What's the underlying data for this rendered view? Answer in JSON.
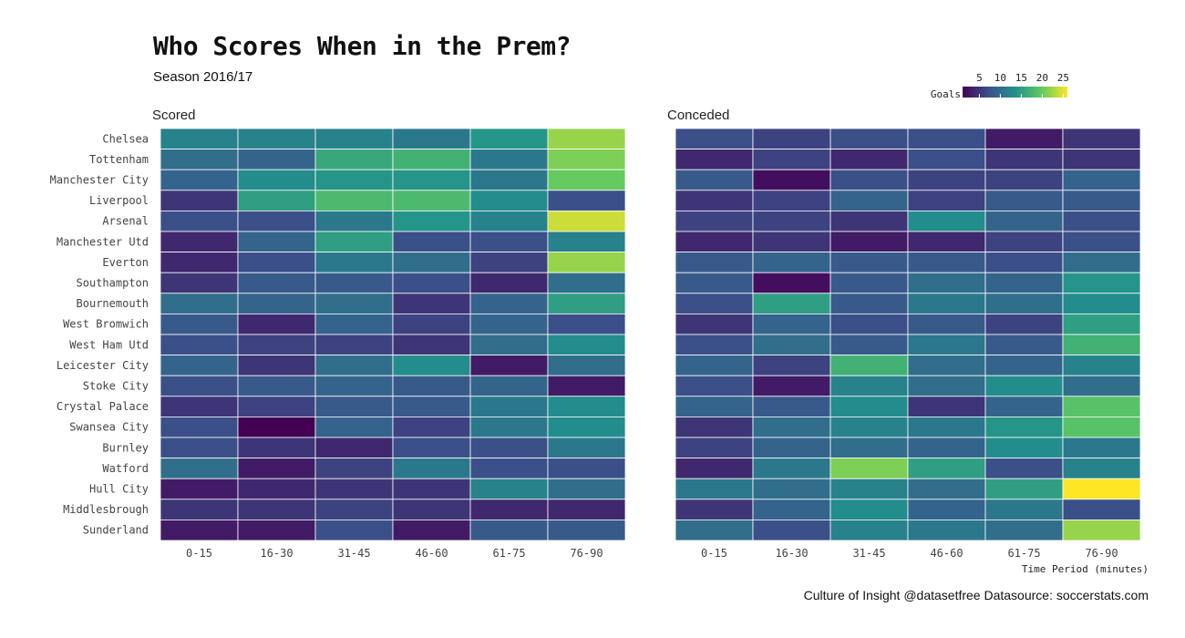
{
  "title": "Who Scores When in the Prem?",
  "subtitle": "Season 2016/17",
  "caption": "Culture of Insight @datasetfree Datasource: soccerstats.com",
  "chart_data": {
    "type": "heatmap",
    "xlabel": "Time Period (minutes)",
    "color_scale": "viridis",
    "colors": [
      "#440154",
      "#3b528b",
      "#21918c",
      "#5ec962",
      "#fde725"
    ],
    "legend": {
      "title": "Goals",
      "ticks": [
        5,
        10,
        15,
        20,
        25
      ],
      "range": [
        1,
        26
      ],
      "placement": "top-right"
    },
    "x_categories": [
      "0-15",
      "16-30",
      "31-45",
      "46-60",
      "61-75",
      "76-90"
    ],
    "y_categories": [
      "Chelsea",
      "Tottenham",
      "Manchester City",
      "Liverpool",
      "Arsenal",
      "Manchester Utd",
      "Everton",
      "Southampton",
      "Bournemouth",
      "West Bromwich",
      "West Ham Utd",
      "Leicester City",
      "Stoke City",
      "Crystal Palace",
      "Swansea City",
      "Burnley",
      "Watford",
      "Hull City",
      "Middlesbrough",
      "Sunderland"
    ],
    "panels": [
      {
        "title": "Scored",
        "values": [
          [
            12,
            12,
            12,
            11,
            14,
            22
          ],
          [
            10,
            9,
            16,
            17,
            11,
            21
          ],
          [
            9,
            13,
            14,
            14,
            11,
            20
          ],
          [
            5,
            15,
            18,
            18,
            13,
            7
          ],
          [
            7,
            7,
            11,
            14,
            12,
            24
          ],
          [
            4,
            9,
            15,
            7,
            7,
            12
          ],
          [
            4,
            7,
            11,
            10,
            6,
            22
          ],
          [
            5,
            8,
            8,
            7,
            4,
            10
          ],
          [
            10,
            9,
            10,
            5,
            9,
            15
          ],
          [
            8,
            4,
            9,
            6,
            9,
            7
          ],
          [
            7,
            6,
            6,
            5,
            10,
            13
          ],
          [
            9,
            5,
            10,
            13,
            3,
            10
          ],
          [
            7,
            8,
            9,
            8,
            9,
            3
          ],
          [
            5,
            6,
            8,
            8,
            11,
            13
          ],
          [
            7,
            1,
            9,
            6,
            11,
            13
          ],
          [
            7,
            5,
            4,
            7,
            7,
            11
          ],
          [
            10,
            3,
            6,
            11,
            7,
            7
          ],
          [
            3,
            4,
            5,
            5,
            12,
            10
          ],
          [
            5,
            5,
            6,
            5,
            4,
            4
          ],
          [
            3,
            3,
            7,
            3,
            8,
            8
          ]
        ]
      },
      {
        "title": "Conceded",
        "values": [
          [
            7,
            6,
            7,
            7,
            3,
            5
          ],
          [
            4,
            6,
            4,
            7,
            5,
            5
          ],
          [
            8,
            2,
            7,
            6,
            6,
            9
          ],
          [
            5,
            6,
            9,
            6,
            8,
            8
          ],
          [
            6,
            6,
            5,
            13,
            9,
            7
          ],
          [
            4,
            5,
            3,
            4,
            6,
            7
          ],
          [
            8,
            9,
            8,
            8,
            7,
            10
          ],
          [
            8,
            2,
            8,
            10,
            9,
            14
          ],
          [
            7,
            15,
            8,
            11,
            10,
            13
          ],
          [
            5,
            9,
            7,
            8,
            6,
            15
          ],
          [
            7,
            10,
            8,
            11,
            8,
            17
          ],
          [
            9,
            6,
            17,
            10,
            9,
            12
          ],
          [
            7,
            3,
            12,
            10,
            13,
            10
          ],
          [
            9,
            8,
            13,
            5,
            9,
            19
          ],
          [
            5,
            10,
            12,
            11,
            14,
            19
          ],
          [
            6,
            9,
            10,
            9,
            13,
            11
          ],
          [
            4,
            11,
            21,
            15,
            7,
            12
          ],
          [
            11,
            10,
            12,
            10,
            15,
            26
          ],
          [
            5,
            9,
            13,
            9,
            11,
            7
          ],
          [
            10,
            7,
            12,
            11,
            10,
            22
          ]
        ]
      }
    ]
  }
}
